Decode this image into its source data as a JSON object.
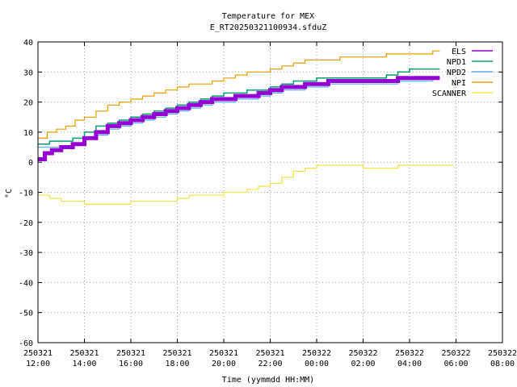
{
  "chart_data": {
    "type": "line",
    "title": "Temperature for MEX",
    "subtitle": "E_RT20250321100934.sfduZ",
    "xlabel": "Time (yymmdd HH:MM)",
    "ylabel": "°C",
    "ylim": [
      -60,
      40
    ],
    "yticks": [
      40,
      30,
      20,
      10,
      0,
      -10,
      -20,
      -30,
      -40,
      -50,
      -60
    ],
    "xlim_hours": [
      0,
      20
    ],
    "xticks": [
      {
        "h": 0,
        "date": "250321",
        "time": "12:00"
      },
      {
        "h": 2,
        "date": "250321",
        "time": "14:00"
      },
      {
        "h": 4,
        "date": "250321",
        "time": "16:00"
      },
      {
        "h": 6,
        "date": "250321",
        "time": "18:00"
      },
      {
        "h": 8,
        "date": "250321",
        "time": "20:00"
      },
      {
        "h": 10,
        "date": "250321",
        "time": "22:00"
      },
      {
        "h": 12,
        "date": "250322",
        "time": "00:00"
      },
      {
        "h": 14,
        "date": "250322",
        "time": "02:00"
      },
      {
        "h": 16,
        "date": "250322",
        "time": "04:00"
      },
      {
        "h": 18,
        "date": "250322",
        "time": "06:00"
      },
      {
        "h": 20,
        "date": "250322",
        "time": "08:00"
      }
    ],
    "grid": true,
    "legend_position": "top-right",
    "series": [
      {
        "name": "ELS",
        "color": "#9400d3",
        "width": 5,
        "points": [
          [
            0,
            1
          ],
          [
            0.3,
            3
          ],
          [
            0.6,
            4
          ],
          [
            1.0,
            5
          ],
          [
            1.5,
            6
          ],
          [
            2.0,
            8
          ],
          [
            2.5,
            10
          ],
          [
            3.0,
            12
          ],
          [
            3.5,
            13
          ],
          [
            4.0,
            14
          ],
          [
            4.5,
            15
          ],
          [
            5.0,
            16
          ],
          [
            5.5,
            17
          ],
          [
            6.0,
            18
          ],
          [
            6.5,
            19
          ],
          [
            7.0,
            20
          ],
          [
            7.5,
            21
          ],
          [
            8.0,
            21
          ],
          [
            8.5,
            22
          ],
          [
            9.0,
            22
          ],
          [
            9.5,
            23
          ],
          [
            10.0,
            24
          ],
          [
            10.5,
            25
          ],
          [
            11.0,
            25
          ],
          [
            11.5,
            26
          ],
          [
            12.0,
            26
          ],
          [
            12.5,
            27
          ],
          [
            13.0,
            27
          ],
          [
            13.5,
            27
          ],
          [
            14.0,
            27
          ],
          [
            14.5,
            27
          ],
          [
            15.0,
            27
          ],
          [
            15.5,
            28
          ],
          [
            16.0,
            28
          ],
          [
            16.5,
            28
          ],
          [
            17.0,
            28
          ],
          [
            17.3,
            28
          ]
        ]
      },
      {
        "name": "NPD1",
        "color": "#009e73",
        "width": 1.5,
        "points": [
          [
            0,
            6
          ],
          [
            0.5,
            7
          ],
          [
            1.0,
            7
          ],
          [
            1.5,
            8
          ],
          [
            2.0,
            10
          ],
          [
            2.5,
            12
          ],
          [
            3.0,
            13
          ],
          [
            3.5,
            14
          ],
          [
            4.0,
            15
          ],
          [
            4.5,
            16
          ],
          [
            5.0,
            17
          ],
          [
            5.5,
            18
          ],
          [
            6.0,
            19
          ],
          [
            6.5,
            20
          ],
          [
            7.0,
            21
          ],
          [
            7.5,
            22
          ],
          [
            8.0,
            23
          ],
          [
            8.5,
            23
          ],
          [
            9.0,
            24
          ],
          [
            9.5,
            24
          ],
          [
            10.0,
            25
          ],
          [
            10.5,
            26
          ],
          [
            11.0,
            27
          ],
          [
            11.5,
            27
          ],
          [
            12.0,
            28
          ],
          [
            12.5,
            28
          ],
          [
            13.0,
            28
          ],
          [
            13.5,
            28
          ],
          [
            14.0,
            28
          ],
          [
            14.5,
            28
          ],
          [
            15.0,
            29
          ],
          [
            15.5,
            30
          ],
          [
            16.0,
            31
          ],
          [
            16.5,
            31
          ],
          [
            17.0,
            31
          ],
          [
            17.3,
            31
          ]
        ]
      },
      {
        "name": "NPD2",
        "color": "#56b4e9",
        "width": 1.2,
        "points": [
          [
            0,
            5
          ],
          [
            0.5,
            5
          ],
          [
            1.0,
            5
          ],
          [
            1.5,
            6
          ],
          [
            2.0,
            8
          ],
          [
            2.5,
            9
          ],
          [
            3.0,
            11
          ],
          [
            3.5,
            12
          ],
          [
            4.0,
            13
          ],
          [
            4.5,
            14
          ],
          [
            5.0,
            15
          ],
          [
            5.5,
            16
          ],
          [
            6.0,
            17
          ],
          [
            6.5,
            18
          ],
          [
            7.0,
            19
          ],
          [
            7.5,
            20
          ],
          [
            8.0,
            20
          ],
          [
            8.5,
            21
          ],
          [
            9.0,
            21
          ],
          [
            9.5,
            22
          ],
          [
            10.0,
            23
          ],
          [
            10.5,
            24
          ],
          [
            11.0,
            24
          ],
          [
            11.5,
            25
          ],
          [
            12.0,
            25
          ],
          [
            12.5,
            26
          ],
          [
            13.0,
            26
          ],
          [
            13.5,
            26
          ],
          [
            14.0,
            26
          ],
          [
            14.5,
            26
          ],
          [
            15.0,
            26
          ],
          [
            15.5,
            27
          ],
          [
            16.0,
            27
          ],
          [
            16.5,
            27
          ],
          [
            17.0,
            28
          ],
          [
            17.3,
            28
          ]
        ]
      },
      {
        "name": "NPI",
        "color": "#e69f00",
        "width": 1.2,
        "points": [
          [
            0,
            8
          ],
          [
            0.4,
            10
          ],
          [
            0.8,
            11
          ],
          [
            1.2,
            12
          ],
          [
            1.6,
            14
          ],
          [
            2.0,
            15
          ],
          [
            2.5,
            17
          ],
          [
            3.0,
            19
          ],
          [
            3.5,
            20
          ],
          [
            4.0,
            21
          ],
          [
            4.5,
            22
          ],
          [
            5.0,
            23
          ],
          [
            5.5,
            24
          ],
          [
            6.0,
            25
          ],
          [
            6.5,
            26
          ],
          [
            7.0,
            26
          ],
          [
            7.5,
            27
          ],
          [
            8.0,
            28
          ],
          [
            8.5,
            29
          ],
          [
            9.0,
            30
          ],
          [
            9.5,
            30
          ],
          [
            10.0,
            31
          ],
          [
            10.5,
            32
          ],
          [
            11.0,
            33
          ],
          [
            11.5,
            34
          ],
          [
            12.0,
            34
          ],
          [
            12.5,
            34
          ],
          [
            13.0,
            35
          ],
          [
            13.5,
            35
          ],
          [
            14.0,
            35
          ],
          [
            14.5,
            35
          ],
          [
            15.0,
            36
          ],
          [
            15.5,
            36
          ],
          [
            16.0,
            36
          ],
          [
            16.5,
            36
          ],
          [
            17.0,
            37
          ],
          [
            17.3,
            37
          ]
        ]
      },
      {
        "name": "SCANNER",
        "color": "#f0e442",
        "width": 1.2,
        "points": [
          [
            0,
            -11
          ],
          [
            0.5,
            -12
          ],
          [
            1.0,
            -13
          ],
          [
            1.5,
            -13
          ],
          [
            2.0,
            -14
          ],
          [
            3.0,
            -14
          ],
          [
            4.0,
            -13
          ],
          [
            5.0,
            -13
          ],
          [
            6.0,
            -12
          ],
          [
            6.5,
            -11
          ],
          [
            7.0,
            -11
          ],
          [
            8.0,
            -10
          ],
          [
            9.0,
            -9
          ],
          [
            9.5,
            -8
          ],
          [
            10.0,
            -7
          ],
          [
            10.5,
            -5
          ],
          [
            11.0,
            -3
          ],
          [
            11.5,
            -2
          ],
          [
            12.0,
            -1
          ],
          [
            12.5,
            -1
          ],
          [
            13.0,
            -1
          ],
          [
            14.0,
            -2
          ],
          [
            15.0,
            -2
          ],
          [
            15.5,
            -1
          ],
          [
            16.0,
            -1
          ],
          [
            16.5,
            -1
          ],
          [
            17.0,
            -1
          ],
          [
            17.5,
            -1
          ],
          [
            17.9,
            -1
          ]
        ]
      }
    ]
  }
}
